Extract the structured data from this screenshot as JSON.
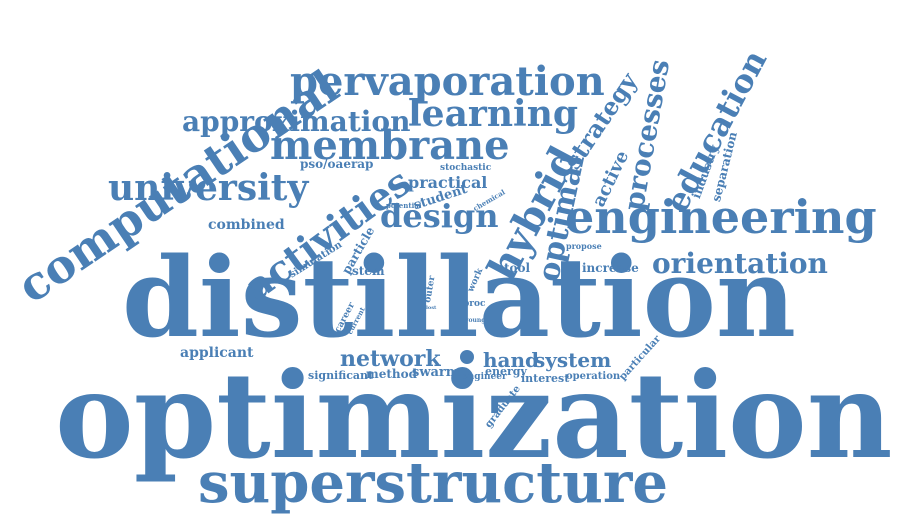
{
  "color": "#4a7fb5",
  "words": [
    "optimization",
    "distillation",
    "superstructure",
    "engineering",
    "computational",
    "pervaporation",
    "membrane",
    "university",
    "activities",
    "hybrid",
    "learning",
    "approximation",
    "design",
    "education",
    "optimal",
    "processes",
    "orientation",
    "network",
    "strategy",
    "system",
    "hand",
    "active",
    "practical",
    "student",
    "industry",
    "separation",
    "combined",
    "pso/oaerap",
    "stochastic",
    "applicant",
    "stem",
    "tool",
    "increase",
    "particle",
    "simulation",
    "swarm",
    "method",
    "significant",
    "engineer",
    "energy",
    "interest",
    "operation",
    "particular",
    "graduate",
    "career",
    "current",
    "outer",
    "proc",
    "work",
    "young",
    "propose",
    "potential",
    "chemical",
    "lost"
  ]
}
